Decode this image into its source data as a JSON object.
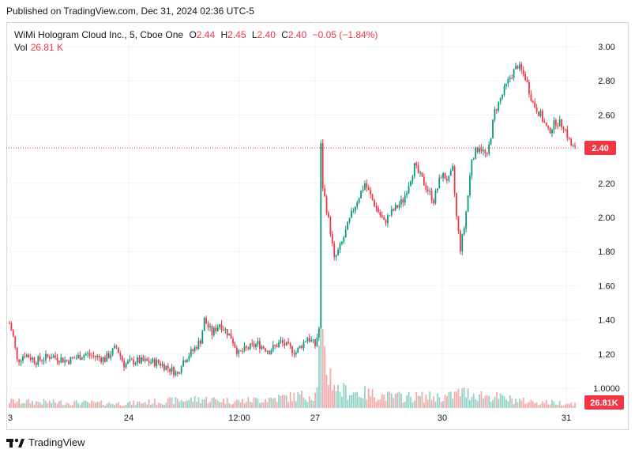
{
  "header": {
    "published": "Published on TradingView.com, Dec 31, 2024 02:36 UTC-5"
  },
  "legend": {
    "symbol": "WiMi Hologram Cloud Inc., 5, Cboe One",
    "o_label": "O",
    "o_value": "2.44",
    "h_label": "H",
    "h_value": "2.45",
    "l_label": "L",
    "l_value": "2.40",
    "c_label": "C",
    "c_value": "2.40",
    "change": "−0.05 (−1.84%)",
    "vol_label": "Vol",
    "vol_value": "26.81 K"
  },
  "colors": {
    "up": "#089981",
    "down": "#f23645",
    "up_volume": "#92d2c8",
    "down_volume": "#f7a9a7",
    "grid": "#f0f3fa",
    "accent": "#f23645"
  },
  "footer": {
    "brand": "TradingView",
    "brand_icon": "tradingview-logo-icon"
  },
  "chart_data": {
    "type": "candlestick",
    "interval": "5",
    "y_ticks": [
      "3.00",
      "2.80",
      "2.60",
      "2.40",
      "2.20",
      "2.00",
      "1.80",
      "1.60",
      "1.40",
      "1.20",
      "1.0000"
    ],
    "y_range": [
      1.0,
      3.0
    ],
    "x_ticks": [
      "3",
      "24",
      "12:00",
      "27",
      "30",
      "31"
    ],
    "last_price": "2.40",
    "last_volume": "26.81K",
    "grid": true,
    "price_anchors": [
      [
        0,
        1.38
      ],
      [
        2,
        1.3
      ],
      [
        4,
        1.16
      ],
      [
        8,
        1.2
      ],
      [
        14,
        1.16
      ],
      [
        22,
        1.19
      ],
      [
        30,
        1.16
      ],
      [
        40,
        1.2
      ],
      [
        50,
        1.17
      ],
      [
        56,
        1.24
      ],
      [
        60,
        1.14
      ],
      [
        66,
        1.16
      ],
      [
        78,
        1.15
      ],
      [
        86,
        1.1
      ],
      [
        88,
        1.08
      ],
      [
        90,
        1.15
      ],
      [
        96,
        1.22
      ],
      [
        100,
        1.28
      ],
      [
        102,
        1.4
      ],
      [
        106,
        1.32
      ],
      [
        110,
        1.38
      ],
      [
        116,
        1.3
      ],
      [
        120,
        1.2
      ],
      [
        124,
        1.23
      ],
      [
        130,
        1.26
      ],
      [
        136,
        1.22
      ],
      [
        142,
        1.27
      ],
      [
        150,
        1.21
      ],
      [
        156,
        1.3
      ],
      [
        160,
        1.25
      ],
      [
        162,
        1.35
      ],
      [
        163,
        2.42
      ],
      [
        164,
        2.18
      ],
      [
        166,
        2.05
      ],
      [
        168,
        1.92
      ],
      [
        170,
        1.75
      ],
      [
        174,
        1.85
      ],
      [
        180,
        2.05
      ],
      [
        186,
        2.2
      ],
      [
        190,
        2.1
      ],
      [
        196,
        1.97
      ],
      [
        200,
        2.03
      ],
      [
        206,
        2.1
      ],
      [
        212,
        2.3
      ],
      [
        216,
        2.22
      ],
      [
        222,
        2.1
      ],
      [
        226,
        2.25
      ],
      [
        230,
        2.22
      ],
      [
        232,
        2.28
      ],
      [
        234,
        2.0
      ],
      [
        236,
        1.82
      ],
      [
        238,
        1.94
      ],
      [
        240,
        2.13
      ],
      [
        242,
        2.35
      ],
      [
        246,
        2.42
      ],
      [
        250,
        2.35
      ],
      [
        254,
        2.62
      ],
      [
        258,
        2.72
      ],
      [
        262,
        2.82
      ],
      [
        266,
        2.89
      ],
      [
        270,
        2.82
      ],
      [
        274,
        2.67
      ],
      [
        278,
        2.6
      ],
      [
        282,
        2.5
      ],
      [
        286,
        2.56
      ],
      [
        290,
        2.54
      ],
      [
        294,
        2.42
      ],
      [
        296,
        2.4
      ]
    ],
    "volume_levels": [
      [
        0,
        0.03
      ],
      [
        60,
        0.02
      ],
      [
        100,
        0.04
      ],
      [
        120,
        0.03
      ],
      [
        160,
        0.06
      ],
      [
        163,
        0.3
      ],
      [
        166,
        0.18
      ],
      [
        172,
        0.08
      ],
      [
        200,
        0.05
      ],
      [
        230,
        0.05
      ],
      [
        236,
        0.07
      ],
      [
        246,
        0.06
      ],
      [
        270,
        0.03
      ],
      [
        296,
        0.02
      ]
    ]
  }
}
